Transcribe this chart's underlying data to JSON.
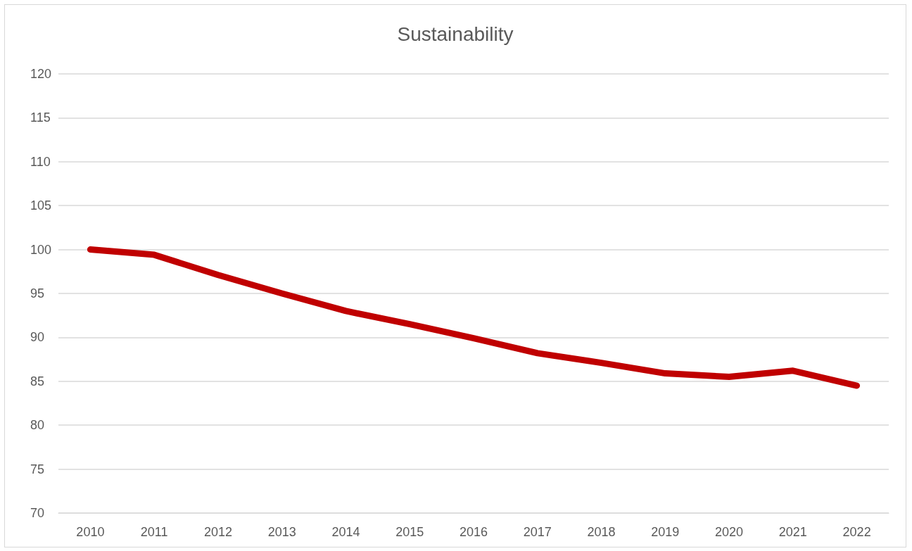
{
  "chart_data": {
    "type": "line",
    "title": "Sustainability",
    "categories": [
      "2010",
      "2011",
      "2012",
      "2013",
      "2014",
      "2015",
      "2016",
      "2017",
      "2018",
      "2019",
      "2020",
      "2021",
      "2022"
    ],
    "series": [
      {
        "color": "#c00000",
        "values": [
          100,
          99.4,
          97.1,
          95.0,
          93.0,
          91.5,
          89.9,
          88.2,
          87.1,
          85.9,
          85.5,
          86.2,
          84.5
        ]
      }
    ],
    "ylim": [
      70,
      120
    ],
    "yticks": [
      70,
      75,
      80,
      85,
      90,
      95,
      100,
      105,
      110,
      115,
      120
    ],
    "grid": "y",
    "marker": "none",
    "line_style": "solid"
  }
}
